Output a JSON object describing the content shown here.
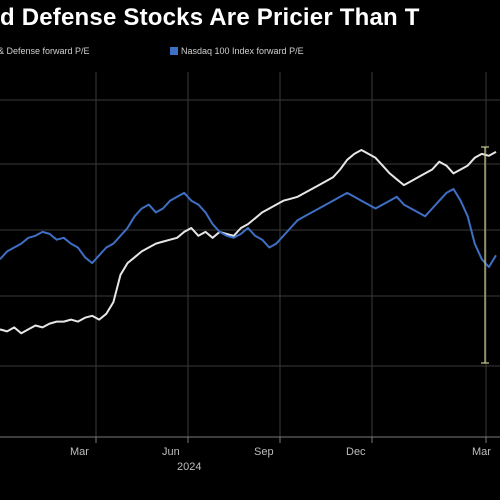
{
  "title": "d Defense Stocks Are Pricier Than T",
  "colors": {
    "background": "#000000",
    "grid": "#3a3a3a",
    "series_white": "#e6e6e6",
    "series_blue": "#3f6fc4",
    "bracket": "#c9c88a"
  },
  "chart_data": {
    "type": "line",
    "title": "d Defense Stocks Are Pricier Than T",
    "xlabel": "",
    "ylabel": "",
    "x_ticks": [
      "Mar",
      "Jun",
      "Sep",
      "Dec",
      "Mar"
    ],
    "x_sub_label": "2024",
    "grid": true,
    "legend_position": "top-left",
    "series": [
      {
        "name": "ace & Defense forward P/E",
        "color": "#e6e6e6",
        "values": [
          8,
          7,
          9,
          6,
          8,
          10,
          9,
          11,
          12,
          12,
          13,
          12,
          14,
          15,
          13,
          16,
          22,
          36,
          42,
          45,
          48,
          50,
          52,
          53,
          54,
          55,
          58,
          60,
          56,
          58,
          55,
          58,
          57,
          56,
          60,
          62,
          65,
          68,
          70,
          72,
          74,
          75,
          76,
          78,
          80,
          82,
          84,
          86,
          90,
          95,
          98,
          100,
          98,
          96,
          92,
          88,
          85,
          82,
          84,
          86,
          88,
          90,
          94,
          92,
          88,
          90,
          92,
          96,
          98,
          97,
          99
        ]
      },
      {
        "name": "Nasdaq 100 Index forward P/E",
        "color": "#3f6fc4",
        "values": [
          44,
          48,
          50,
          52,
          55,
          56,
          58,
          57,
          54,
          55,
          52,
          50,
          45,
          42,
          46,
          50,
          52,
          56,
          60,
          66,
          70,
          72,
          68,
          70,
          74,
          76,
          78,
          74,
          72,
          68,
          62,
          58,
          56,
          55,
          57,
          60,
          56,
          54,
          50,
          52,
          56,
          60,
          64,
          66,
          68,
          70,
          72,
          74,
          76,
          78,
          76,
          74,
          72,
          70,
          72,
          74,
          76,
          72,
          70,
          68,
          66,
          70,
          74,
          78,
          80,
          74,
          66,
          52,
          44,
          40,
          46
        ]
      }
    ]
  }
}
